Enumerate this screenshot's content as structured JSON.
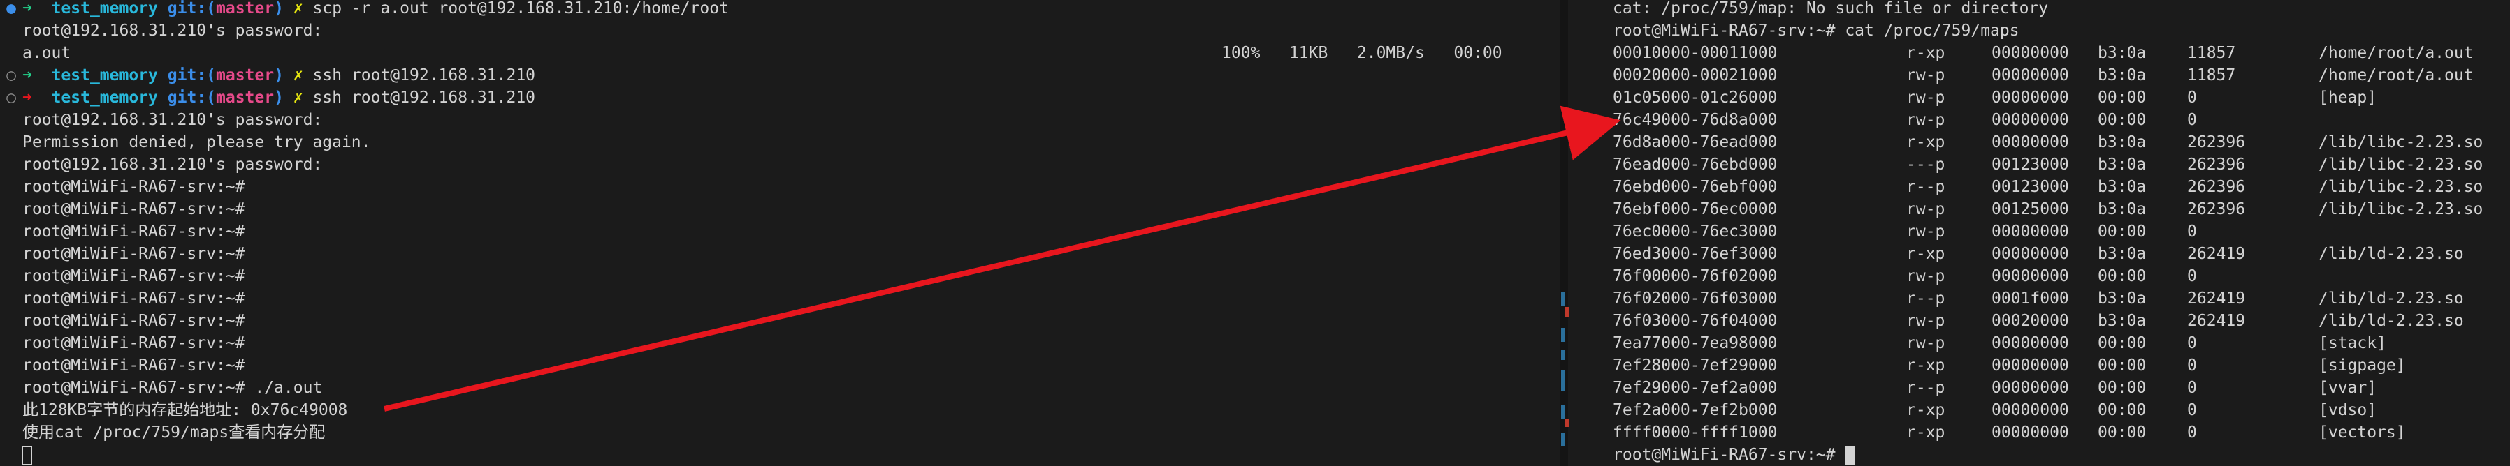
{
  "left": {
    "lines": [
      {
        "prompt": true,
        "state": "blue",
        "dir": "test_memory",
        "git": "git:(",
        "branch": "master",
        "git_close": ")",
        "x": "✗",
        "cmd": "scp -r a.out root@192.168.31.210:/home/root"
      },
      {
        "text": "root@192.168.31.210's password:"
      },
      {
        "transfer": true,
        "file": "a.out",
        "percent": "100%",
        "size": "11KB",
        "rate": "2.0MB/s",
        "eta": "00:00"
      },
      {
        "prompt": true,
        "state": "hollow",
        "dir": "test_memory",
        "git": "git:(",
        "branch": "master",
        "git_close": ")",
        "x": "✗",
        "cmd": "ssh root@192.168.31.210"
      },
      {
        "prompt": true,
        "state": "hollow",
        "dir": "test_memory",
        "git": "git:(",
        "branch": "master",
        "git_close": ")",
        "x": "✗",
        "cmd": "ssh root@192.168.31.210",
        "arrow_color": "red"
      },
      {
        "text": "root@192.168.31.210's password:"
      },
      {
        "text": "Permission denied, please try again."
      },
      {
        "text": "root@192.168.31.210's password:"
      },
      {
        "text": "root@MiWiFi-RA67-srv:~#"
      },
      {
        "text": "root@MiWiFi-RA67-srv:~#"
      },
      {
        "text": "root@MiWiFi-RA67-srv:~#"
      },
      {
        "text": "root@MiWiFi-RA67-srv:~#"
      },
      {
        "text": "root@MiWiFi-RA67-srv:~#"
      },
      {
        "text": "root@MiWiFi-RA67-srv:~#"
      },
      {
        "text": "root@MiWiFi-RA67-srv:~#"
      },
      {
        "text": "root@MiWiFi-RA67-srv:~#"
      },
      {
        "text": "root@MiWiFi-RA67-srv:~#"
      },
      {
        "text": "root@MiWiFi-RA67-srv:~# ./a.out"
      },
      {
        "text": "此128KB字节的内存起始地址: 0x76c49008"
      },
      {
        "text": "使用cat /proc/759/maps查看内存分配"
      },
      {
        "cursor": true
      }
    ]
  },
  "right": {
    "header": [
      "cat: /proc/759/map: No such file or directory",
      "root@MiWiFi-RA67-srv:~# cat /proc/759/maps"
    ],
    "maps": [
      {
        "range": "00010000-00011000",
        "perms": "r-xp",
        "offset": "00000000",
        "dev": "b3:0a",
        "inode": "11857",
        "path": "/home/root/a.out"
      },
      {
        "range": "00020000-00021000",
        "perms": "rw-p",
        "offset": "00000000",
        "dev": "b3:0a",
        "inode": "11857",
        "path": "/home/root/a.out"
      },
      {
        "range": "01c05000-01c26000",
        "perms": "rw-p",
        "offset": "00000000",
        "dev": "00:00",
        "inode": "0",
        "path": "[heap]"
      },
      {
        "range": "76c49000-76d8a000",
        "perms": "rw-p",
        "offset": "00000000",
        "dev": "00:00",
        "inode": "0",
        "path": ""
      },
      {
        "range": "76d8a000-76ead000",
        "perms": "r-xp",
        "offset": "00000000",
        "dev": "b3:0a",
        "inode": "262396",
        "path": "/lib/libc-2.23.so"
      },
      {
        "range": "76ead000-76ebd000",
        "perms": "---p",
        "offset": "00123000",
        "dev": "b3:0a",
        "inode": "262396",
        "path": "/lib/libc-2.23.so"
      },
      {
        "range": "76ebd000-76ebf000",
        "perms": "r--p",
        "offset": "00123000",
        "dev": "b3:0a",
        "inode": "262396",
        "path": "/lib/libc-2.23.so"
      },
      {
        "range": "76ebf000-76ec0000",
        "perms": "rw-p",
        "offset": "00125000",
        "dev": "b3:0a",
        "inode": "262396",
        "path": "/lib/libc-2.23.so"
      },
      {
        "range": "76ec0000-76ec3000",
        "perms": "rw-p",
        "offset": "00000000",
        "dev": "00:00",
        "inode": "0",
        "path": ""
      },
      {
        "range": "76ed3000-76ef3000",
        "perms": "r-xp",
        "offset": "00000000",
        "dev": "b3:0a",
        "inode": "262419",
        "path": "/lib/ld-2.23.so"
      },
      {
        "range": "76f00000-76f02000",
        "perms": "rw-p",
        "offset": "00000000",
        "dev": "00:00",
        "inode": "0",
        "path": ""
      },
      {
        "range": "76f02000-76f03000",
        "perms": "r--p",
        "offset": "0001f000",
        "dev": "b3:0a",
        "inode": "262419",
        "path": "/lib/ld-2.23.so"
      },
      {
        "range": "76f03000-76f04000",
        "perms": "rw-p",
        "offset": "00020000",
        "dev": "b3:0a",
        "inode": "262419",
        "path": "/lib/ld-2.23.so"
      },
      {
        "range": "7ea77000-7ea98000",
        "perms": "rw-p",
        "offset": "00000000",
        "dev": "00:00",
        "inode": "0",
        "path": "[stack]"
      },
      {
        "range": "7ef28000-7ef29000",
        "perms": "r-xp",
        "offset": "00000000",
        "dev": "00:00",
        "inode": "0",
        "path": "[sigpage]"
      },
      {
        "range": "7ef29000-7ef2a000",
        "perms": "r--p",
        "offset": "00000000",
        "dev": "00:00",
        "inode": "0",
        "path": "[vvar]"
      },
      {
        "range": "7ef2a000-7ef2b000",
        "perms": "r-xp",
        "offset": "00000000",
        "dev": "00:00",
        "inode": "0",
        "path": "[vdso]"
      },
      {
        "range": "ffff0000-ffff1000",
        "perms": "r-xp",
        "offset": "00000000",
        "dev": "00:00",
        "inode": "0",
        "path": "[vectors]"
      }
    ],
    "footer": "root@MiWiFi-RA67-srv:~#"
  },
  "colors": {
    "background": "#1b1b1b",
    "text": "#d3d3d3",
    "prompt_arrow": "#23d18b",
    "dir": "#29b8db",
    "git": "#3b8eea",
    "branch": "#e64a8a",
    "dirty_x": "#e5e510",
    "annotation_arrow": "#e8161e"
  },
  "icons": {
    "prompt_arrow": "arrow-right-icon",
    "dirty": "x-mark-icon",
    "state_blue": "filled-circle-icon",
    "state_hollow": "hollow-circle-icon"
  }
}
